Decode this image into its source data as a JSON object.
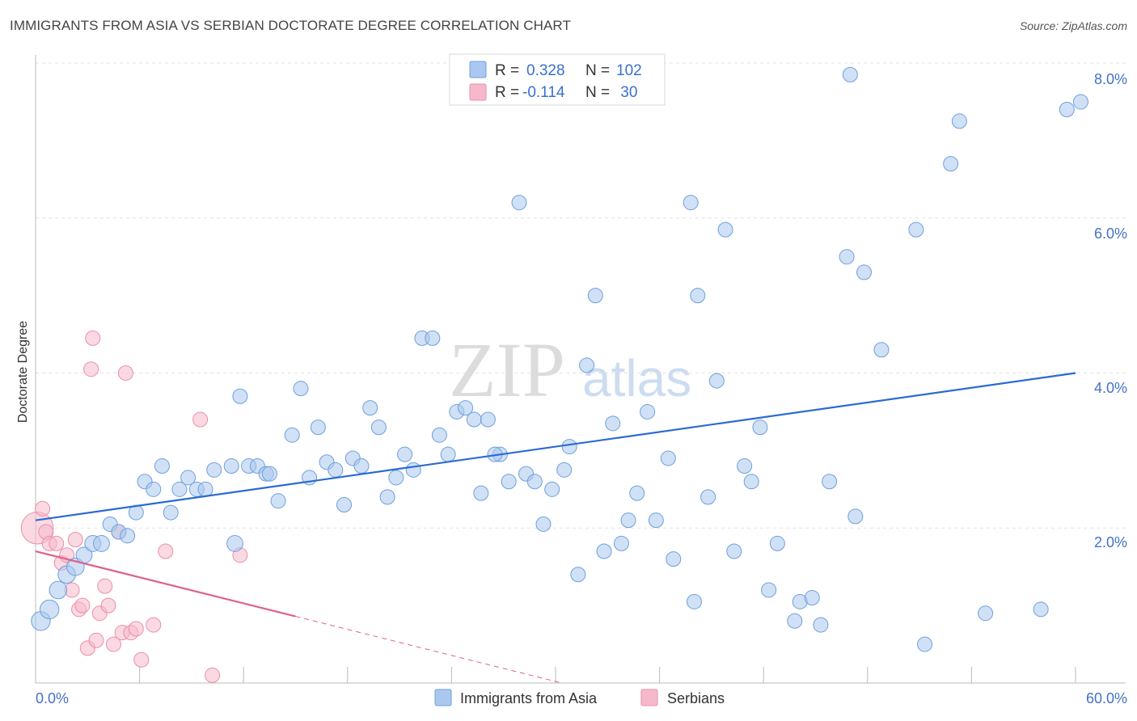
{
  "title": "IMMIGRANTS FROM ASIA VS SERBIAN DOCTORATE DEGREE CORRELATION CHART",
  "source": "Source: ZipAtlas.com",
  "watermark": {
    "zip": "ZIP",
    "atlas": "atlas"
  },
  "colors": {
    "blue_fill": "#aac8ef",
    "blue_stroke": "#6f9fdc",
    "blue_line": "#2a6bd1",
    "pink_fill": "#f6b9cb",
    "pink_stroke": "#ea8eab",
    "pink_line": "#e0608e",
    "grid": "#e3e3e3",
    "axis": "#bbbbbb",
    "tick_text": "#4472c4"
  },
  "legend_top": [
    {
      "r_label": "R = ",
      "r_value": "0.328",
      "n_label": "N = ",
      "n_value": "102"
    },
    {
      "r_label": "R = ",
      "r_value": "-0.114",
      "n_label": "N = ",
      "n_value": " 30"
    }
  ],
  "chart_data": {
    "type": "scatter",
    "xlabel": "",
    "ylabel": "Doctorate Degree",
    "xlim": [
      0,
      60
    ],
    "ylim": [
      0,
      8
    ],
    "x_tick_labels": [
      "0.0%",
      "60.0%"
    ],
    "x_tick_count": 11,
    "y_ticks": [
      2,
      4,
      6,
      8
    ],
    "y_tick_labels": [
      "2.0%",
      "4.0%",
      "6.0%",
      "8.0%"
    ],
    "legend": [
      "Immigrants from Asia",
      "Serbians"
    ],
    "series": [
      {
        "name": "Immigrants from Asia",
        "trend": {
          "x0": 0,
          "y0": 2.1,
          "x1": 60,
          "y1": 4.0,
          "solid_to": 60
        },
        "points": [
          [
            0.3,
            0.8,
            1.3
          ],
          [
            0.8,
            0.95,
            1.3
          ],
          [
            1.3,
            1.2,
            1.2
          ],
          [
            1.8,
            1.4,
            1.2
          ],
          [
            2.3,
            1.5,
            1.2
          ],
          [
            2.8,
            1.65,
            1.1
          ],
          [
            3.3,
            1.8,
            1.1
          ],
          [
            3.8,
            1.8,
            1.1
          ],
          [
            4.3,
            2.05,
            1
          ],
          [
            4.8,
            1.95,
            1
          ],
          [
            5.3,
            1.9,
            1
          ],
          [
            5.8,
            2.2,
            1
          ],
          [
            6.3,
            2.6,
            1
          ],
          [
            6.8,
            2.5,
            1
          ],
          [
            7.3,
            2.8,
            1
          ],
          [
            7.8,
            2.2,
            1
          ],
          [
            8.3,
            2.5,
            1
          ],
          [
            8.8,
            2.65,
            1
          ],
          [
            9.3,
            2.5,
            1
          ],
          [
            9.8,
            2.5,
            1
          ],
          [
            10.3,
            2.75,
            1
          ],
          [
            11.3,
            2.8,
            1
          ],
          [
            11.5,
            1.8,
            1.1
          ],
          [
            11.8,
            3.7,
            1
          ],
          [
            12.3,
            2.8,
            1
          ],
          [
            12.8,
            2.8,
            1
          ],
          [
            13.3,
            2.7,
            1
          ],
          [
            13.5,
            2.7,
            1
          ],
          [
            14,
            2.35,
            1
          ],
          [
            14.8,
            3.2,
            1
          ],
          [
            15.3,
            3.8,
            1
          ],
          [
            15.8,
            2.65,
            1
          ],
          [
            16.3,
            3.3,
            1
          ],
          [
            16.8,
            2.85,
            1
          ],
          [
            17.3,
            2.75,
            1
          ],
          [
            17.8,
            2.3,
            1
          ],
          [
            18.3,
            2.9,
            1
          ],
          [
            18.8,
            2.8,
            1
          ],
          [
            19.3,
            3.55,
            1
          ],
          [
            19.8,
            3.3,
            1
          ],
          [
            20.3,
            2.4,
            1
          ],
          [
            20.8,
            2.65,
            1
          ],
          [
            21.3,
            2.95,
            1
          ],
          [
            21.8,
            2.75,
            1
          ],
          [
            22.3,
            4.45,
            1
          ],
          [
            22.9,
            4.45,
            1
          ],
          [
            23.3,
            3.2,
            1
          ],
          [
            23.8,
            2.95,
            1
          ],
          [
            24.3,
            3.5,
            1
          ],
          [
            24.8,
            3.55,
            1
          ],
          [
            25.3,
            3.4,
            1
          ],
          [
            25.7,
            2.45,
            1
          ],
          [
            26.1,
            3.4,
            1
          ],
          [
            26.8,
            2.95,
            1
          ],
          [
            27.3,
            2.6,
            1
          ],
          [
            27.9,
            6.2,
            1
          ],
          [
            28.3,
            2.7,
            1
          ],
          [
            28.8,
            2.6,
            1
          ],
          [
            29.3,
            2.05,
            1
          ],
          [
            29.8,
            2.5,
            1
          ],
          [
            30.5,
            2.75,
            1
          ],
          [
            30.8,
            3.05,
            1
          ],
          [
            31.3,
            1.4,
            1
          ],
          [
            31.8,
            4.1,
            1
          ],
          [
            32.3,
            5.0,
            1
          ],
          [
            32.8,
            1.7,
            1
          ],
          [
            33.3,
            3.35,
            1
          ],
          [
            33.8,
            1.8,
            1
          ],
          [
            34.2,
            2.1,
            1
          ],
          [
            34.7,
            2.45,
            1
          ],
          [
            35.3,
            3.5,
            1
          ],
          [
            35.8,
            2.1,
            1
          ],
          [
            36.5,
            2.9,
            1
          ],
          [
            36.8,
            1.6,
            1
          ],
          [
            37.8,
            6.2,
            1
          ],
          [
            38.2,
            5.0,
            1
          ],
          [
            38.8,
            2.4,
            1
          ],
          [
            39.3,
            3.9,
            1
          ],
          [
            39.8,
            5.85,
            1
          ],
          [
            40.3,
            1.7,
            1
          ],
          [
            40.9,
            2.8,
            1
          ],
          [
            41.3,
            2.6,
            1
          ],
          [
            41.8,
            3.3,
            1
          ],
          [
            42.3,
            1.2,
            1
          ],
          [
            42.8,
            1.8,
            1
          ],
          [
            43.8,
            0.8,
            1
          ],
          [
            44.1,
            1.05,
            1
          ],
          [
            44.8,
            1.1,
            1
          ],
          [
            45.3,
            0.75,
            1
          ],
          [
            45.8,
            2.6,
            1
          ],
          [
            46.8,
            5.5,
            1
          ],
          [
            47.3,
            2.15,
            1
          ],
          [
            47.8,
            5.3,
            1
          ],
          [
            48.8,
            4.3,
            1
          ],
          [
            50.8,
            5.85,
            1
          ],
          [
            51.3,
            0.5,
            1
          ],
          [
            52.8,
            6.7,
            1
          ],
          [
            53.3,
            7.25,
            1
          ],
          [
            54.8,
            0.9,
            1
          ],
          [
            47.0,
            7.85,
            1
          ],
          [
            58.0,
            0.95,
            1
          ],
          [
            59.5,
            7.4,
            1
          ],
          [
            60.3,
            7.5,
            1
          ],
          [
            38.0,
            1.05,
            1
          ],
          [
            26.5,
            2.95,
            1
          ]
        ]
      },
      {
        "name": "Serbians",
        "trend": {
          "x0": 0,
          "y0": 1.7,
          "x1": 60,
          "y1": -1.66,
          "solid_to": 15
        },
        "points": [
          [
            0.1,
            2.0,
            2.2
          ],
          [
            0.4,
            2.25,
            1
          ],
          [
            0.6,
            1.95,
            1
          ],
          [
            0.8,
            1.8,
            1
          ],
          [
            1.2,
            1.8,
            1
          ],
          [
            1.5,
            1.55,
            1
          ],
          [
            1.8,
            1.65,
            1
          ],
          [
            2.1,
            1.2,
            1
          ],
          [
            2.3,
            1.85,
            1
          ],
          [
            2.5,
            0.95,
            1
          ],
          [
            2.7,
            1.0,
            1
          ],
          [
            3.0,
            0.45,
            1
          ],
          [
            3.2,
            4.05,
            1
          ],
          [
            3.3,
            4.45,
            1
          ],
          [
            3.5,
            0.55,
            1
          ],
          [
            3.7,
            0.9,
            1
          ],
          [
            4.0,
            1.25,
            1
          ],
          [
            4.2,
            1.0,
            1
          ],
          [
            4.5,
            0.5,
            1
          ],
          [
            4.8,
            1.95,
            1
          ],
          [
            5.0,
            0.65,
            1
          ],
          [
            5.2,
            4.0,
            1
          ],
          [
            5.5,
            0.65,
            1
          ],
          [
            5.8,
            0.7,
            1
          ],
          [
            6.1,
            0.3,
            1
          ],
          [
            6.8,
            0.75,
            1
          ],
          [
            7.5,
            1.7,
            1
          ],
          [
            9.5,
            3.4,
            1
          ],
          [
            10.2,
            0.1,
            1
          ],
          [
            11.8,
            1.65,
            1
          ]
        ]
      }
    ]
  }
}
